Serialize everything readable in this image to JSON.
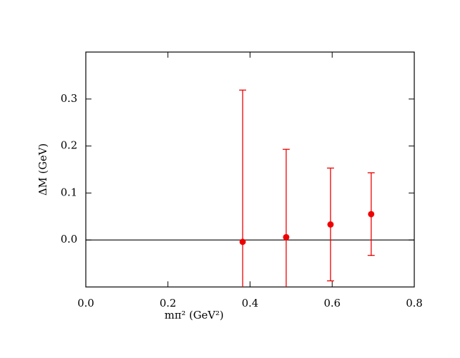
{
  "chart_data": {
    "type": "scatter",
    "x_label": "mπ² (GeV²)",
    "y_label": "ΔM  (GeV)",
    "x": [
      0.382,
      0.488,
      0.596,
      0.695
    ],
    "values": [
      -0.004,
      0.006,
      0.033,
      0.055
    ],
    "errors": [
      0.323,
      0.187,
      0.12,
      0.088
    ],
    "color": "#ee0000",
    "xlim": [
      0,
      0.8
    ],
    "xticks": [
      {
        "value": 0,
        "label": "0.0"
      },
      0.2,
      0.4,
      0.6,
      0.8
    ],
    "ylim": [
      -0.1,
      0.4
    ],
    "yticks": [
      {
        "value": 0,
        "label": "0.0"
      },
      0.1,
      0.2,
      0.3
    ],
    "hline": 0
  }
}
